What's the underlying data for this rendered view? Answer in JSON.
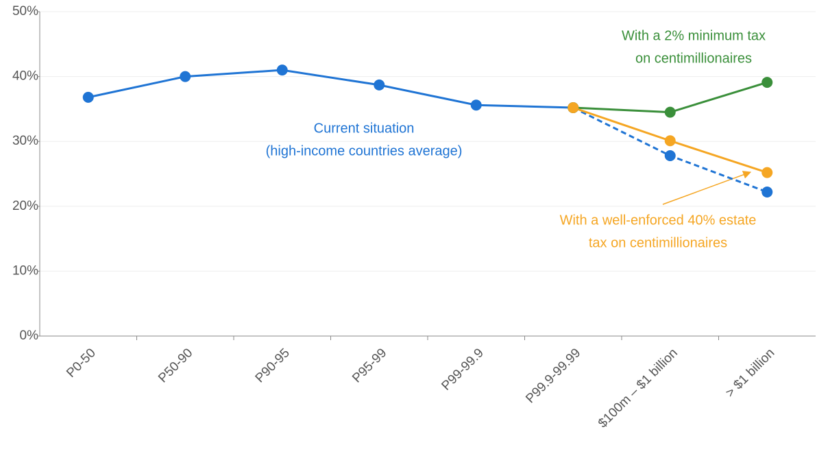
{
  "chart_data": {
    "type": "line",
    "categories": [
      "P0-50",
      "P50-90",
      "P90-95",
      "P95-99",
      "P99-99.9",
      "P99.9-99.99",
      "$100m – $1 billion",
      "> $1 billion"
    ],
    "series": [
      {
        "color": "#1f74d4",
        "dashed": false,
        "values": [
          36.8,
          40,
          41,
          38.7,
          35.6,
          35.2,
          null,
          null
        ]
      },
      {
        "color": "#1f74d4",
        "dashed": true,
        "values": [
          null,
          null,
          null,
          null,
          null,
          35.2,
          27.8,
          22.2
        ]
      },
      {
        "color": "#3a8f3a",
        "dashed": false,
        "values": [
          null,
          null,
          null,
          null,
          null,
          35.2,
          34.5,
          39.1
        ]
      },
      {
        "color": "#f5a623",
        "dashed": false,
        "values": [
          null,
          null,
          null,
          null,
          null,
          35.2,
          30.1,
          25.2
        ]
      }
    ],
    "annotations": [
      {
        "color": "#1f74d4",
        "lines": [
          "Current situation",
          "(high-income countries average)"
        ]
      },
      {
        "color": "#3a8f3a",
        "lines": [
          "With a 2% minimum tax",
          "on centimillionaires"
        ]
      },
      {
        "color": "#f5a623",
        "lines": [
          "With a well-enforced 40% estate",
          "tax on centimillionaires"
        ]
      }
    ],
    "ylim": [
      0,
      50
    ],
    "yticks": [
      {
        "value": 0,
        "label": "0%"
      },
      {
        "value": 10,
        "label": "10%"
      },
      {
        "value": 20,
        "label": "20%"
      },
      {
        "value": 30,
        "label": "30%"
      },
      {
        "value": 40,
        "label": "40%"
      },
      {
        "value": 50,
        "label": "50%"
      }
    ],
    "grid": true
  }
}
